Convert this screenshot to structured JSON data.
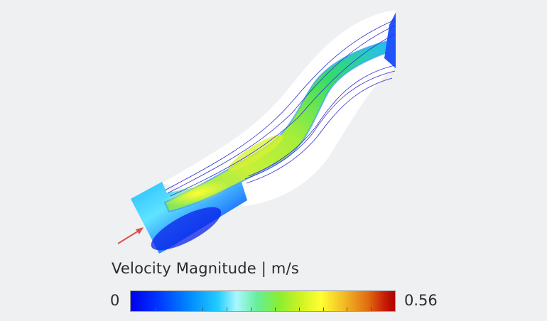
{
  "legend": {
    "title": "Velocity Magnitude | m/s",
    "min_label": "0",
    "max_label": "0.56",
    "min_value": 0,
    "max_value": 0.56,
    "tick_count": 11
  },
  "colors": {
    "background": "#eff0f1",
    "domain_fill": "#ffffff",
    "streamline": "#3030cc",
    "inlet_arrow": "#d9534f"
  },
  "icons": {
    "inlet_arrow": "arrow-icon"
  }
}
